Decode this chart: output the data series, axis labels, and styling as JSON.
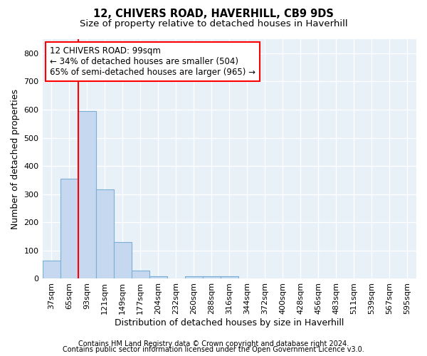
{
  "title": "12, CHIVERS ROAD, HAVERHILL, CB9 9DS",
  "subtitle": "Size of property relative to detached houses in Haverhill",
  "xlabel": "Distribution of detached houses by size in Haverhill",
  "ylabel": "Number of detached properties",
  "categories": [
    "37sqm",
    "65sqm",
    "93sqm",
    "121sqm",
    "149sqm",
    "177sqm",
    "204sqm",
    "232sqm",
    "260sqm",
    "288sqm",
    "316sqm",
    "344sqm",
    "372sqm",
    "400sqm",
    "428sqm",
    "456sqm",
    "483sqm",
    "511sqm",
    "539sqm",
    "567sqm",
    "595sqm"
  ],
  "values": [
    65,
    355,
    595,
    318,
    130,
    30,
    10,
    0,
    10,
    10,
    10,
    0,
    0,
    0,
    0,
    0,
    0,
    0,
    0,
    0,
    0
  ],
  "bar_color": "#c5d8f0",
  "bar_edge_color": "#7bafd4",
  "bar_width": 1.0,
  "redline_x": 1.5,
  "annotation_line1": "12 CHIVERS ROAD: 99sqm",
  "annotation_line2": "← 34% of detached houses are smaller (504)",
  "annotation_line3": "65% of semi-detached houses are larger (965) →",
  "ylim": [
    0,
    850
  ],
  "yticks": [
    0,
    100,
    200,
    300,
    400,
    500,
    600,
    700,
    800
  ],
  "footer_line1": "Contains HM Land Registry data © Crown copyright and database right 2024.",
  "footer_line2": "Contains public sector information licensed under the Open Government Licence v3.0.",
  "bg_color": "#e8f0f8",
  "grid_color": "white",
  "title_fontsize": 10.5,
  "subtitle_fontsize": 9.5,
  "label_fontsize": 9,
  "tick_fontsize": 8,
  "footer_fontsize": 7,
  "annot_fontsize": 8.5
}
